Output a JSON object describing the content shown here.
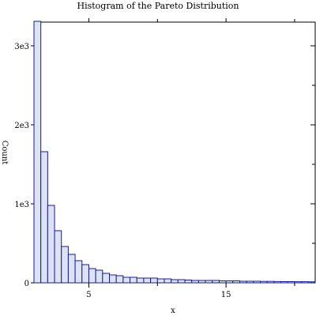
{
  "chart_data": {
    "type": "bar",
    "subtype": "histogram",
    "title": "Histogram of the Pareto Distribution",
    "xlabel": "x",
    "ylabel": "Count",
    "xlim": [
      1,
      21.5
    ],
    "ylim": [
      0,
      3300
    ],
    "bin_width": 0.5,
    "bin_start": 1,
    "values": [
      3310,
      1660,
      980,
      660,
      460,
      360,
      280,
      230,
      180,
      160,
      120,
      100,
      90,
      70,
      70,
      60,
      60,
      60,
      50,
      50,
      40,
      40,
      35,
      30,
      30,
      30,
      30,
      25,
      25,
      25,
      20,
      20,
      20,
      18,
      18,
      16,
      15,
      15,
      14,
      14,
      13
    ],
    "x_ticks": [
      5,
      15
    ],
    "x_tick_labels": [
      "5",
      "15"
    ],
    "y_ticks": [
      0,
      1000,
      2000,
      3000
    ],
    "y_tick_labels": [
      "0",
      "1e3",
      "2e3",
      "3e3"
    ],
    "minor_x_ticks": [
      10,
      20
    ],
    "bar_fill": "#dce3f5",
    "bar_stroke": "#1a1a9e",
    "grid": false
  }
}
